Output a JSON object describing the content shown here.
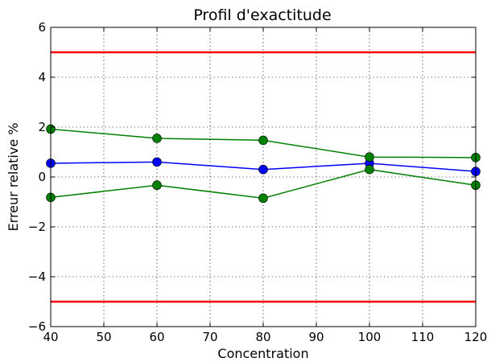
{
  "chart_data": {
    "type": "line",
    "title": "Profil d'exactitude",
    "xlabel": "Concentration",
    "ylabel": "Erreur relative %",
    "xlim": [
      40,
      120
    ],
    "ylim": [
      -6,
      6
    ],
    "x_ticks": [
      40,
      50,
      60,
      70,
      80,
      90,
      100,
      110,
      120
    ],
    "y_ticks": [
      -6,
      -4,
      -2,
      0,
      2,
      4,
      6
    ],
    "y_tick_labels": [
      "−6",
      "−4",
      "−2",
      "0",
      "2",
      "4",
      "6"
    ],
    "grid": true,
    "x": [
      40,
      60,
      80,
      100,
      120
    ],
    "series": [
      {
        "color": "#0000ff",
        "values": [
          0.55,
          0.6,
          0.3,
          0.55,
          0.22
        ]
      },
      {
        "color": "#008000",
        "values": [
          1.92,
          1.55,
          1.47,
          0.8,
          0.78
        ]
      },
      {
        "color": "#008000",
        "values": [
          -0.82,
          -0.33,
          -0.85,
          0.3,
          -0.33
        ]
      }
    ],
    "hlines": [
      {
        "y": 5,
        "color": "#ff0000"
      },
      {
        "y": -5,
        "color": "#ff0000"
      }
    ]
  }
}
